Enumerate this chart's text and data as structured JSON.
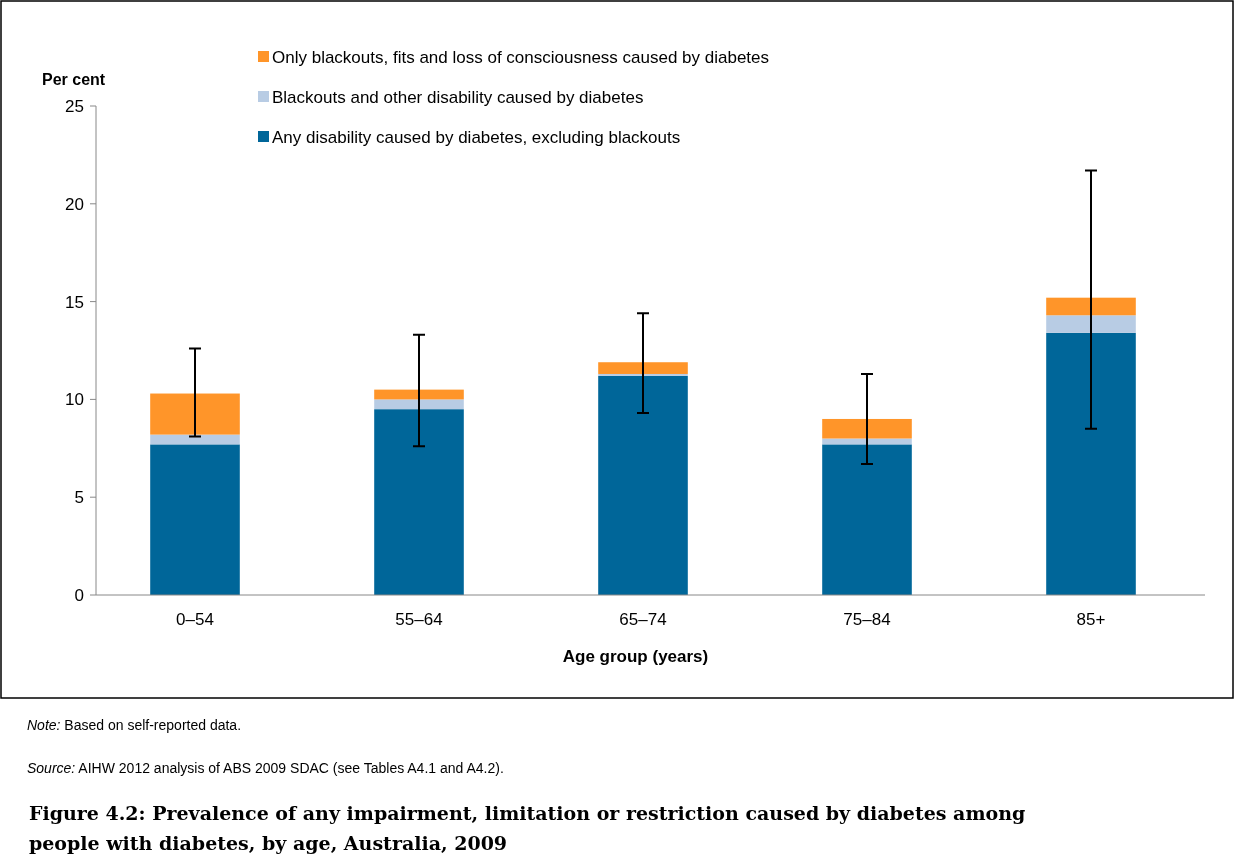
{
  "chart_data": {
    "type": "bar",
    "title": "Figure 4.2: Prevalence of any impairment, limitation or restriction caused by diabetes among people with diabetes, by age, Australia, 2009",
    "xlabel": "Age group (years)",
    "ylabel": "Per cent",
    "categories": [
      "0–54",
      "55–64",
      "65–74",
      "75–84",
      "85+"
    ],
    "stacked": true,
    "series": [
      {
        "name": "Any disability caused by diabetes, excluding blackouts",
        "color": "#006699",
        "values": [
          7.7,
          9.5,
          11.2,
          7.7,
          13.4
        ]
      },
      {
        "name": "Blackouts and other disability caused by diabetes",
        "color": "#b8cce4",
        "values": [
          0.5,
          0.5,
          0.1,
          0.3,
          0.9
        ]
      },
      {
        "name": "Only blackouts, fits and loss of consciousness caused by diabetes",
        "color": "#ff9529",
        "values": [
          2.1,
          0.5,
          0.6,
          1.0,
          0.9
        ],
        "errors": [
          [
            8.1,
            12.6
          ],
          [
            7.6,
            13.3
          ],
          [
            9.3,
            14.4
          ],
          [
            6.7,
            11.3
          ],
          [
            8.5,
            21.7
          ]
        ]
      }
    ],
    "ylim": [
      0,
      25
    ],
    "yticks": [
      0,
      5,
      10,
      15,
      20,
      25
    ],
    "grid": false,
    "legend": "top",
    "annotations": [
      "Note: Based on self-reported data.",
      "Source: AIHW 2012 analysis of ABS 2009 SDAC (see Tables A4.1 and A4.2)."
    ]
  }
}
